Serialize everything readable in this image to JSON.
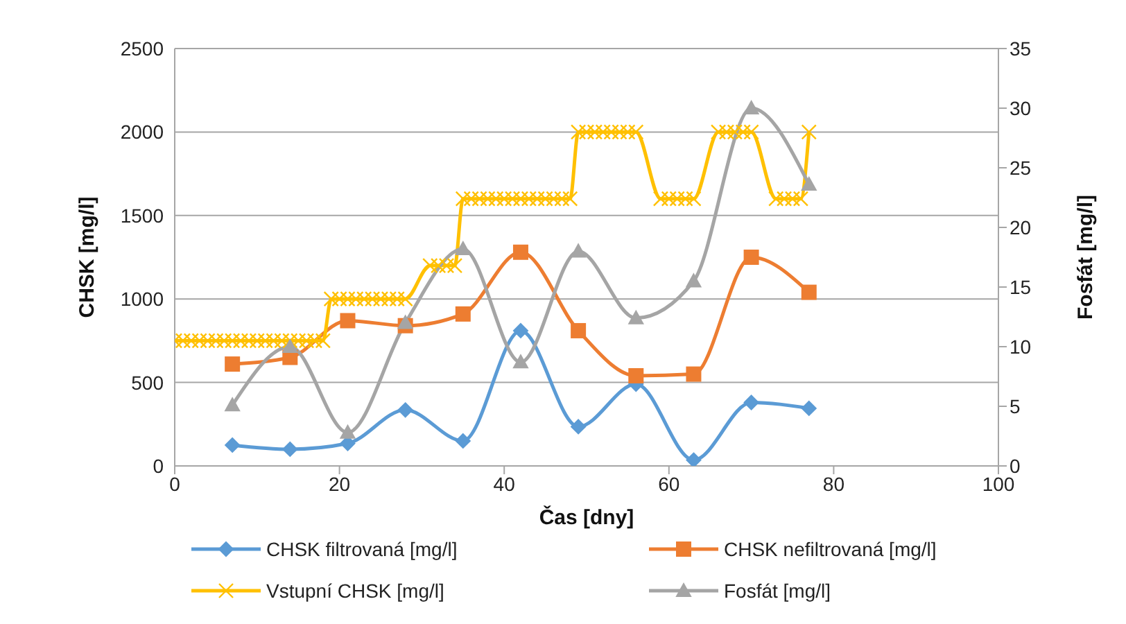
{
  "chart_data": {
    "type": "line",
    "xlabel": "Čas [dny]",
    "ylabel": "CHSK [mg/l]",
    "y2label": "Fosfát  [mg/l]",
    "xlim": [
      0,
      100
    ],
    "xticks": [
      0,
      20,
      40,
      60,
      80,
      100
    ],
    "ylim": [
      0,
      2500
    ],
    "yticks": [
      0,
      500,
      1000,
      1500,
      2000,
      2500
    ],
    "y2lim": [
      0,
      35
    ],
    "y2ticks": [
      0,
      5,
      10,
      15,
      20,
      25,
      30,
      35
    ],
    "grid": "y",
    "legend": "bottom",
    "series": [
      {
        "name": "CHSK filtrovaná [mg/l]",
        "color": "#5b9bd5",
        "marker": "diamond",
        "x": [
          7,
          14,
          21,
          28,
          35,
          42,
          49,
          56,
          63,
          70,
          77
        ],
        "values": [
          125,
          100,
          135,
          335,
          150,
          810,
          235,
          490,
          35,
          380,
          345
        ]
      },
      {
        "name": "CHSK nefiltrovaná [mg/l]",
        "color": "#ed7d31",
        "marker": "square",
        "x": [
          7,
          14,
          21,
          28,
          35,
          42,
          49,
          56,
          63,
          70,
          77
        ],
        "values": [
          610,
          650,
          870,
          840,
          910,
          1280,
          810,
          540,
          550,
          1250,
          1040
        ]
      },
      {
        "name": "Vstupní CHSK [mg/l]",
        "color": "#ffc000",
        "marker": "cross",
        "x": [
          0,
          1,
          2,
          3,
          4,
          5,
          6,
          7,
          8,
          9,
          10,
          11,
          12,
          13,
          14,
          15,
          16,
          17,
          18,
          19,
          20,
          21,
          22,
          23,
          24,
          25,
          26,
          27,
          28,
          31,
          32,
          33,
          34,
          35,
          36,
          37,
          38,
          39,
          40,
          41,
          42,
          43,
          44,
          45,
          46,
          47,
          48,
          49,
          50,
          51,
          52,
          53,
          54,
          55,
          56,
          59,
          60,
          61,
          62,
          63,
          66,
          67,
          68,
          69,
          70,
          73,
          74,
          75,
          76,
          77
        ],
        "values": [
          750,
          750,
          750,
          750,
          750,
          750,
          750,
          750,
          750,
          750,
          750,
          750,
          750,
          750,
          750,
          750,
          750,
          750,
          750,
          1000,
          1000,
          1000,
          1000,
          1000,
          1000,
          1000,
          1000,
          1000,
          1000,
          1200,
          1200,
          1200,
          1200,
          1600,
          1600,
          1600,
          1600,
          1600,
          1600,
          1600,
          1600,
          1600,
          1600,
          1600,
          1600,
          1600,
          1600,
          2000,
          2000,
          2000,
          2000,
          2000,
          2000,
          2000,
          2000,
          1600,
          1600,
          1600,
          1600,
          1600,
          2000,
          2000,
          2000,
          2000,
          2000,
          1600,
          1600,
          1600,
          1600,
          2000
        ]
      },
      {
        "name": "Fosfát [mg/l]",
        "color": "#a5a5a5",
        "marker": "triangle",
        "axis": "y2",
        "x": [
          7,
          14,
          21,
          28,
          35,
          42,
          49,
          56,
          63,
          70,
          77
        ],
        "values": [
          5.1,
          10,
          2.8,
          12,
          18.2,
          8.7,
          18,
          12.4,
          15.5,
          30,
          23.6
        ]
      }
    ]
  }
}
